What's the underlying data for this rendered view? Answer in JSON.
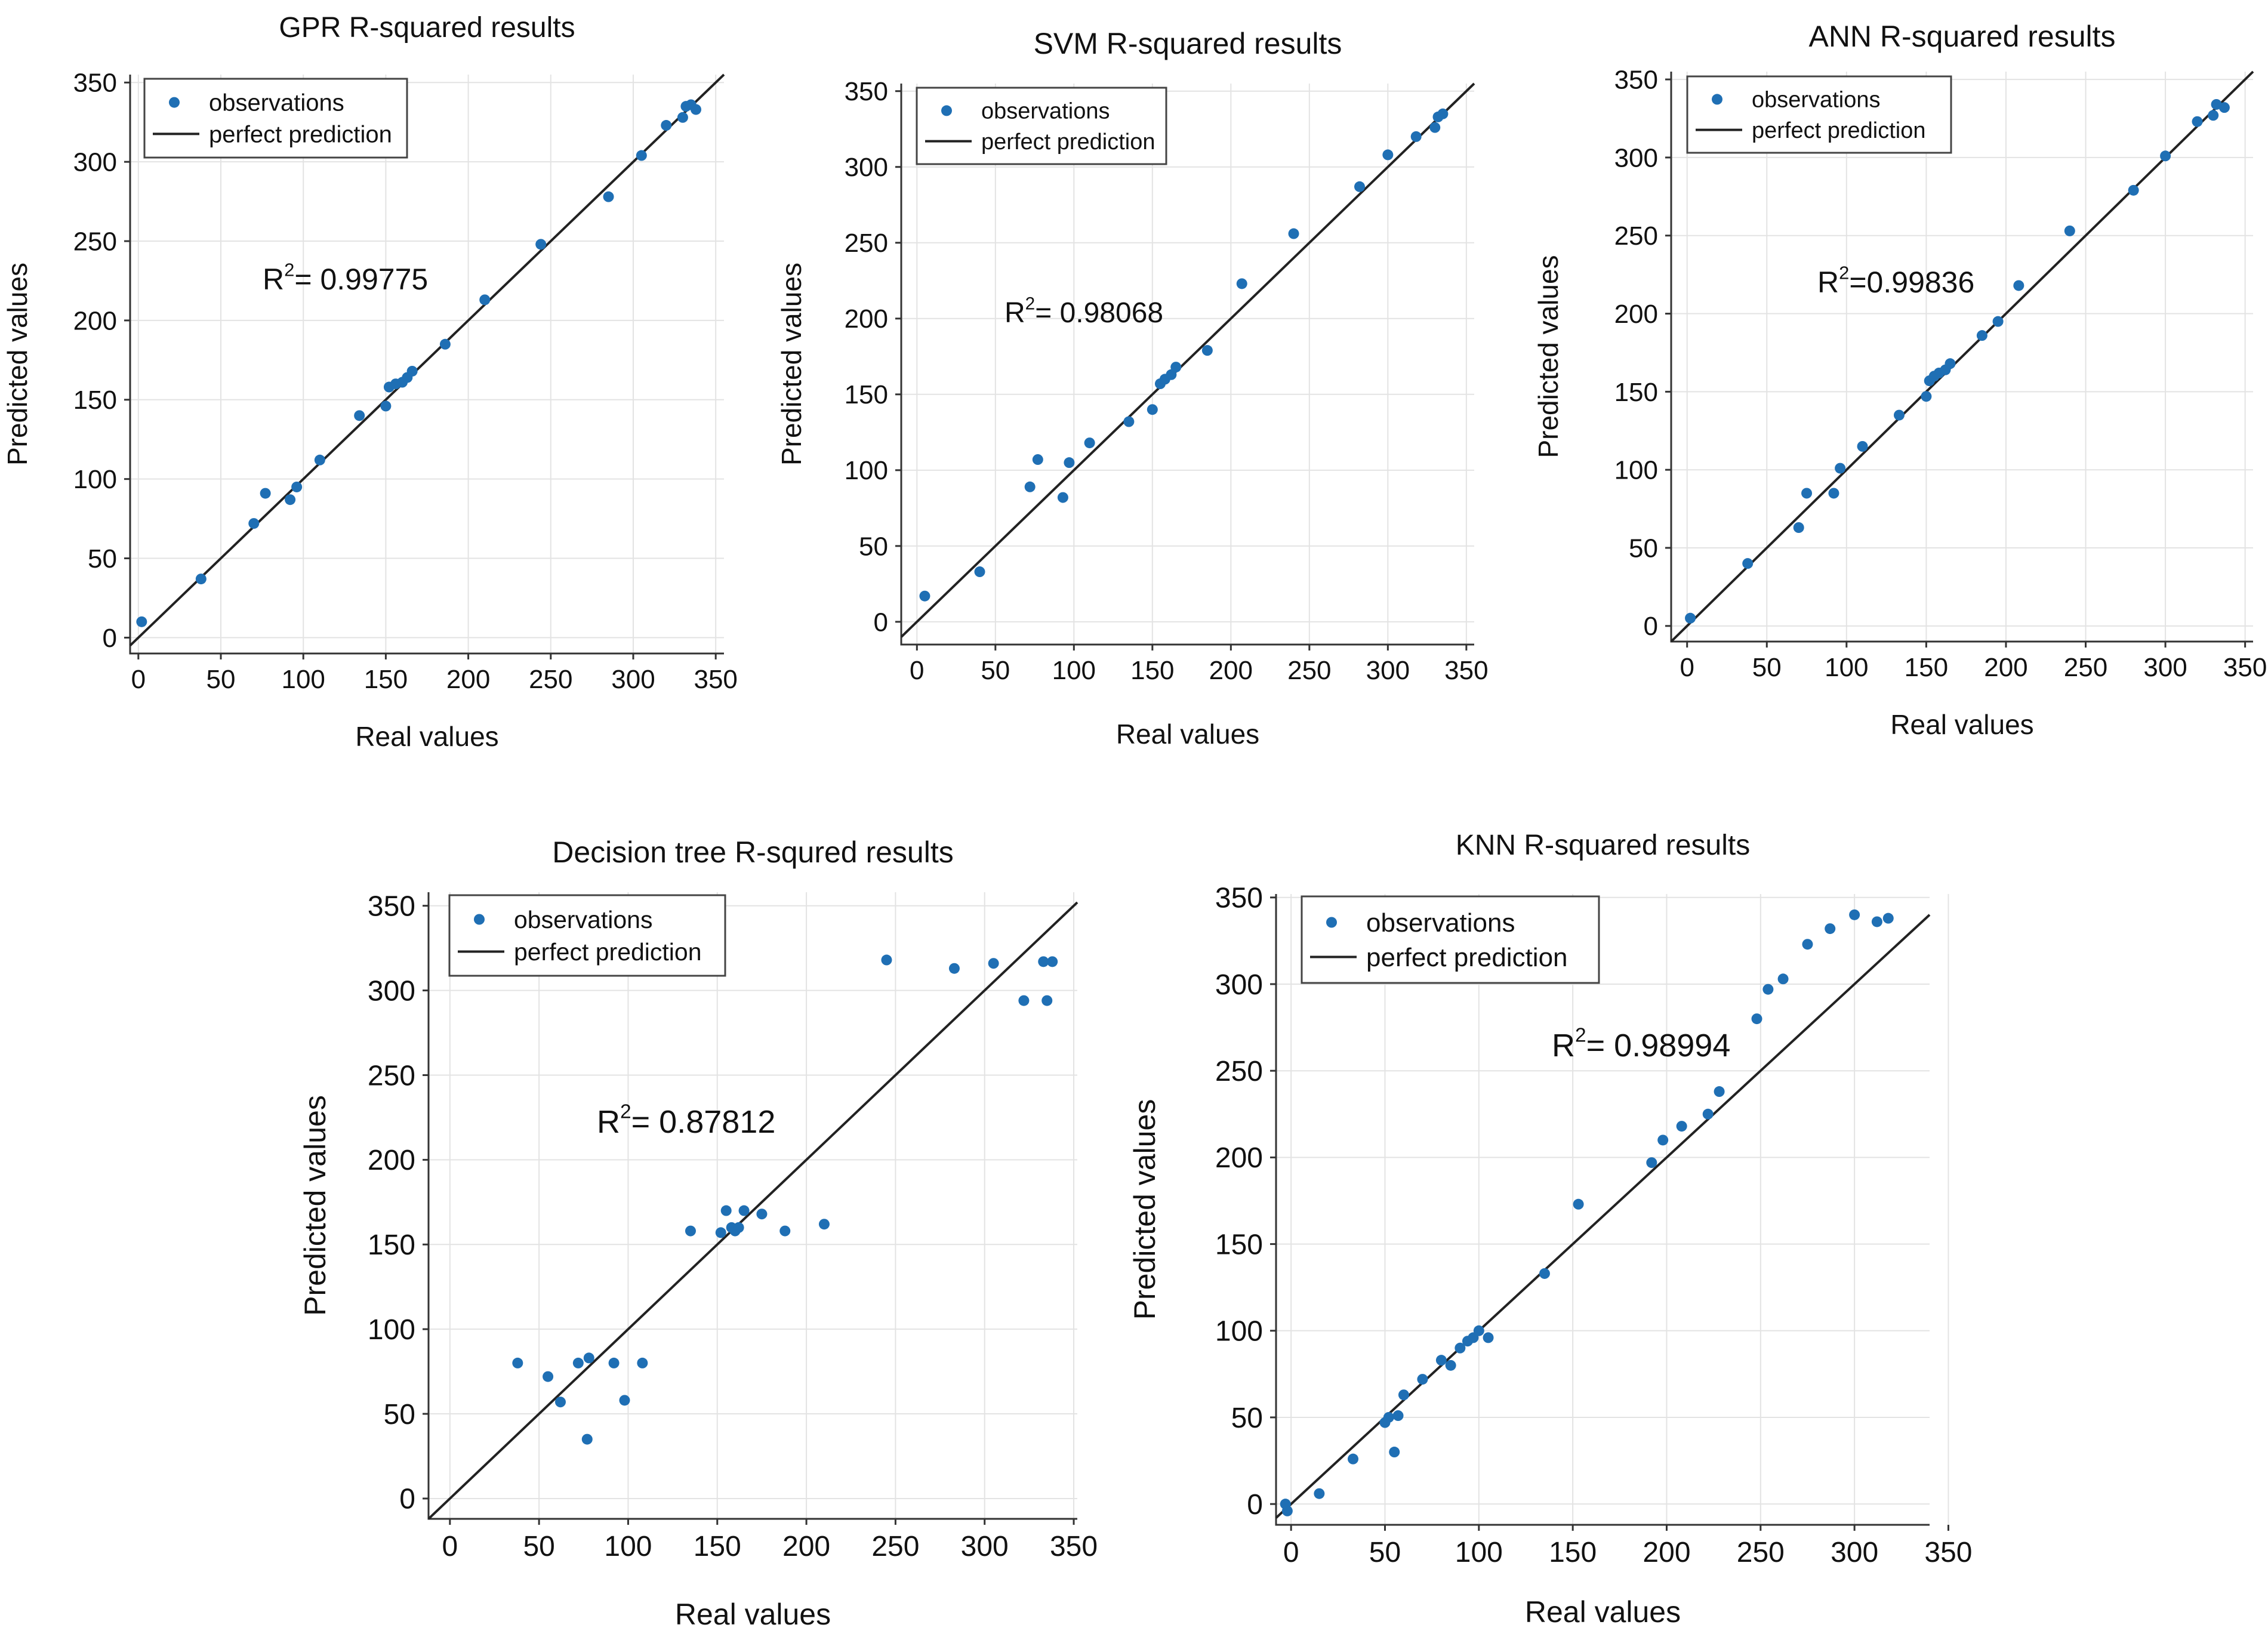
{
  "colors": {
    "observation": "#1f6fb4",
    "line": "#222222",
    "grid": "#e3e3e3"
  },
  "chart_data": [
    {
      "type": "scatter",
      "title": "GPR R-squared results",
      "xlabel": "Real values",
      "ylabel": "Predicted values",
      "xlim": [
        -5,
        355
      ],
      "ylim": [
        -10,
        355
      ],
      "xticks": [
        0,
        50,
        100,
        150,
        200,
        250,
        300,
        350
      ],
      "yticks": [
        0,
        50,
        100,
        150,
        200,
        250,
        300,
        350
      ],
      "grid": true,
      "legend_position": "top-left",
      "legend": {
        "observations": "observations",
        "perfect": "perfect prediction"
      },
      "annotation": {
        "text": "R",
        "sup": "2",
        "value": "= 0.99775"
      },
      "series": [
        {
          "name": "observations",
          "x": [
            2,
            38,
            70,
            77,
            92,
            96,
            110,
            134,
            150,
            152,
            156,
            160,
            163,
            166,
            186,
            210,
            244,
            285,
            305,
            320,
            330,
            332,
            335,
            338
          ],
          "y": [
            10,
            37,
            72,
            91,
            87,
            95,
            112,
            140,
            146,
            158,
            160,
            161,
            164,
            168,
            185,
            213,
            248,
            278,
            304,
            323,
            328,
            335,
            336,
            333
          ]
        },
        {
          "name": "perfect prediction",
          "x": [
            -5,
            355
          ],
          "y": [
            -5,
            355
          ]
        }
      ]
    },
    {
      "type": "scatter",
      "title": "SVM R-squared results",
      "xlabel": "Real values",
      "ylabel": "Predicted values",
      "xlim": [
        -10,
        355
      ],
      "ylim": [
        -15,
        355
      ],
      "xticks": [
        0,
        50,
        100,
        150,
        200,
        250,
        300,
        350
      ],
      "yticks": [
        0,
        50,
        100,
        150,
        200,
        250,
        300,
        350
      ],
      "grid": true,
      "legend_position": "top-left",
      "legend": {
        "observations": "observations",
        "perfect": "perfect prediction"
      },
      "annotation": {
        "text": "R",
        "sup": "2",
        "value": "= 0.98068"
      },
      "series": [
        {
          "name": "observations",
          "x": [
            5,
            40,
            72,
            77,
            93,
            97,
            110,
            135,
            150,
            155,
            158,
            162,
            165,
            185,
            207,
            240,
            282,
            300,
            318,
            330,
            332,
            335
          ],
          "y": [
            17,
            33,
            89,
            107,
            82,
            105,
            118,
            132,
            140,
            157,
            160,
            163,
            168,
            179,
            223,
            256,
            287,
            308,
            320,
            326,
            333,
            335
          ]
        },
        {
          "name": "perfect prediction",
          "x": [
            -10,
            355
          ],
          "y": [
            -10,
            355
          ]
        }
      ]
    },
    {
      "type": "scatter",
      "title": "ANN R-squared results",
      "xlabel": "Real values",
      "ylabel": "Predicted values",
      "xlim": [
        -10,
        355
      ],
      "ylim": [
        -10,
        355
      ],
      "xticks": [
        0,
        50,
        100,
        150,
        200,
        250,
        300,
        350
      ],
      "yticks": [
        0,
        50,
        100,
        150,
        200,
        250,
        300,
        350
      ],
      "grid": true,
      "legend_position": "top-left",
      "legend": {
        "observations": "observations",
        "perfect": "perfect prediction"
      },
      "annotation": {
        "text": "R",
        "sup": "2",
        "value": "=0.99836"
      },
      "series": [
        {
          "name": "observations",
          "x": [
            2,
            38,
            70,
            75,
            92,
            96,
            110,
            133,
            150,
            152,
            155,
            158,
            162,
            165,
            185,
            195,
            208,
            240,
            280,
            300,
            320,
            330,
            332,
            337
          ],
          "y": [
            5,
            40,
            63,
            85,
            85,
            101,
            115,
            135,
            147,
            157,
            160,
            162,
            164,
            168,
            186,
            195,
            218,
            253,
            279,
            301,
            323,
            327,
            334,
            332
          ]
        },
        {
          "name": "perfect prediction",
          "x": [
            -10,
            355
          ],
          "y": [
            -10,
            355
          ]
        }
      ]
    },
    {
      "type": "scatter",
      "title": "Decision tree R-squred results",
      "xlabel": "Real values",
      "ylabel": "Predicted values",
      "xlim": [
        -12,
        352
      ],
      "ylim": [
        -12,
        358
      ],
      "xticks": [
        0,
        50,
        100,
        150,
        200,
        250,
        300,
        350
      ],
      "yticks": [
        0,
        50,
        100,
        150,
        200,
        250,
        300,
        350
      ],
      "grid": true,
      "legend_position": "top-left",
      "legend": {
        "observations": "observations",
        "perfect": "perfect prediction"
      },
      "annotation": {
        "text": "R",
        "sup": "2",
        "value": "= 0.87812"
      },
      "series": [
        {
          "name": "observations",
          "x": [
            38,
            55,
            62,
            72,
            77,
            78,
            92,
            98,
            108,
            135,
            152,
            155,
            158,
            160,
            162,
            165,
            175,
            188,
            210,
            245,
            283,
            305,
            322,
            333,
            335,
            338
          ],
          "y": [
            80,
            72,
            57,
            80,
            35,
            83,
            80,
            58,
            80,
            158,
            157,
            170,
            160,
            158,
            160,
            170,
            168,
            158,
            162,
            318,
            313,
            316,
            294,
            317,
            294,
            317
          ]
        },
        {
          "name": "perfect prediction",
          "x": [
            -12,
            352
          ],
          "y": [
            -12,
            352
          ]
        }
      ]
    },
    {
      "type": "scatter",
      "title": "KNN  R-squared results",
      "xlabel": "Real values",
      "ylabel": "Predicted values",
      "xlim": [
        -8,
        340
      ],
      "ylim": [
        -12,
        352
      ],
      "xticks": [
        0,
        50,
        100,
        150,
        200,
        250,
        300,
        350
      ],
      "yticks": [
        0,
        50,
        100,
        150,
        200,
        250,
        300,
        350
      ],
      "grid": true,
      "legend_position": "top-left",
      "legend": {
        "observations": "observations",
        "perfect": "perfect prediction"
      },
      "annotation": {
        "text": "R",
        "sup": "2",
        "value": "= 0.98994"
      },
      "series": [
        {
          "name": "observations",
          "x": [
            -3,
            -2,
            15,
            33,
            50,
            52,
            55,
            57,
            60,
            70,
            80,
            85,
            90,
            94,
            97,
            100,
            105,
            135,
            153,
            192,
            198,
            208,
            222,
            228,
            248,
            254,
            262,
            275,
            287,
            300,
            312,
            318
          ],
          "y": [
            0,
            -4,
            6,
            26,
            47,
            50,
            30,
            51,
            63,
            72,
            83,
            80,
            90,
            94,
            96,
            100,
            96,
            133,
            173,
            197,
            210,
            218,
            225,
            238,
            280,
            297,
            303,
            323,
            332,
            340,
            336,
            338
          ]
        },
        {
          "name": "perfect prediction",
          "x": [
            -8,
            340
          ],
          "y": [
            -8,
            340
          ]
        }
      ]
    }
  ]
}
